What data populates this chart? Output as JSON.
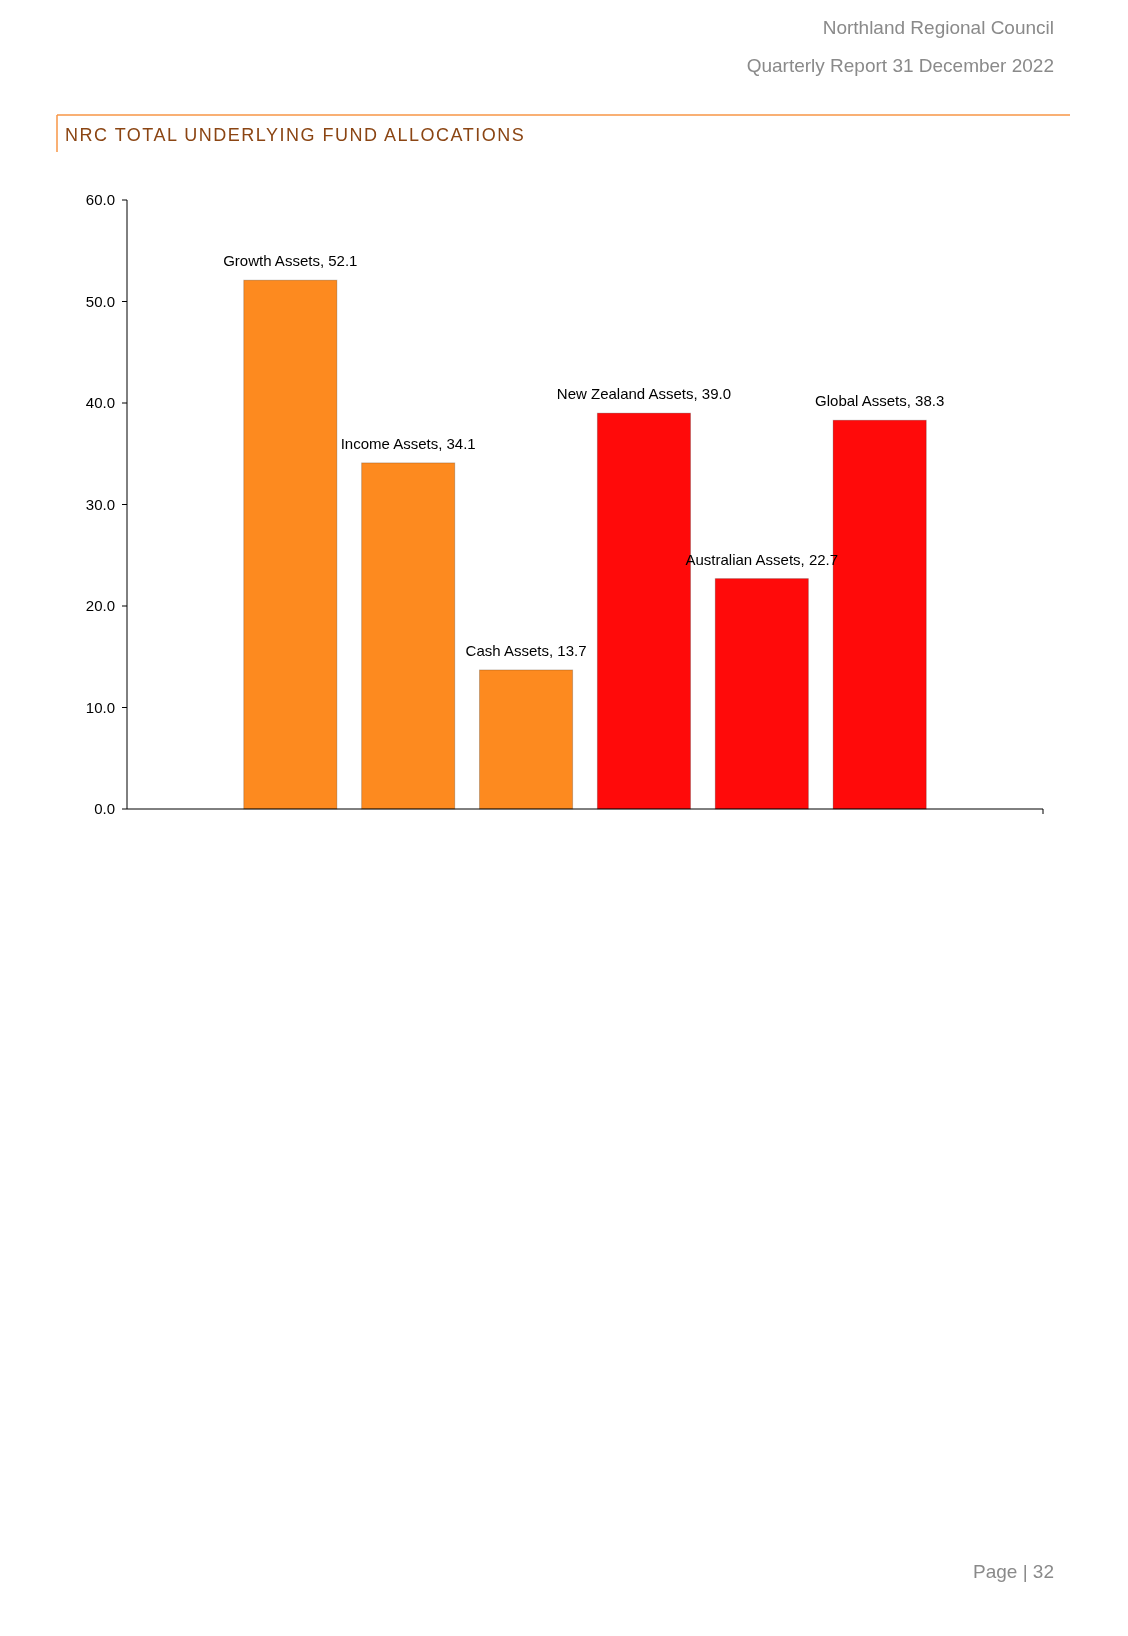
{
  "chart_data": {
    "type": "bar",
    "title": "NRC TOTAL UNDERLYING FUND ALLOCATIONS",
    "subtitle": "Northland Regional Council",
    "annotations": [
      "Quarterly Report 31 December 2022",
      "Page | 32"
    ],
    "categories": [
      null,
      null,
      null,
      null,
      null,
      null
    ],
    "values": [
      52.1,
      34.1,
      13.7,
      39.0,
      22.7,
      38.3
    ],
    "colors": [
      "#fd8a1f",
      "#fd8a1f",
      "#fd8a1f",
      "#ff0a0a",
      "#ff0a0a",
      "#ff0a0a"
    ],
    "value_labels": [
      "Growth Assets, 52.1",
      "Income Assets, 34.1",
      "Cash Assets, 13.7",
      "New Zealand Assets, 39.0",
      "Australian Assets, 22.7",
      "Global Assets, 38.3"
    ],
    "ylim": [
      0,
      60
    ],
    "yticks": [
      {
        "value": 0,
        "label": "0.0"
      },
      {
        "value": 10,
        "label": "10.0"
      },
      {
        "value": 20,
        "label": "20.0"
      },
      {
        "value": 30,
        "label": "30.0"
      },
      {
        "value": 40,
        "label": "40.0"
      },
      {
        "value": 50,
        "label": "50.0"
      },
      {
        "value": 60,
        "label": "60.0"
      }
    ],
    "grid": false
  }
}
